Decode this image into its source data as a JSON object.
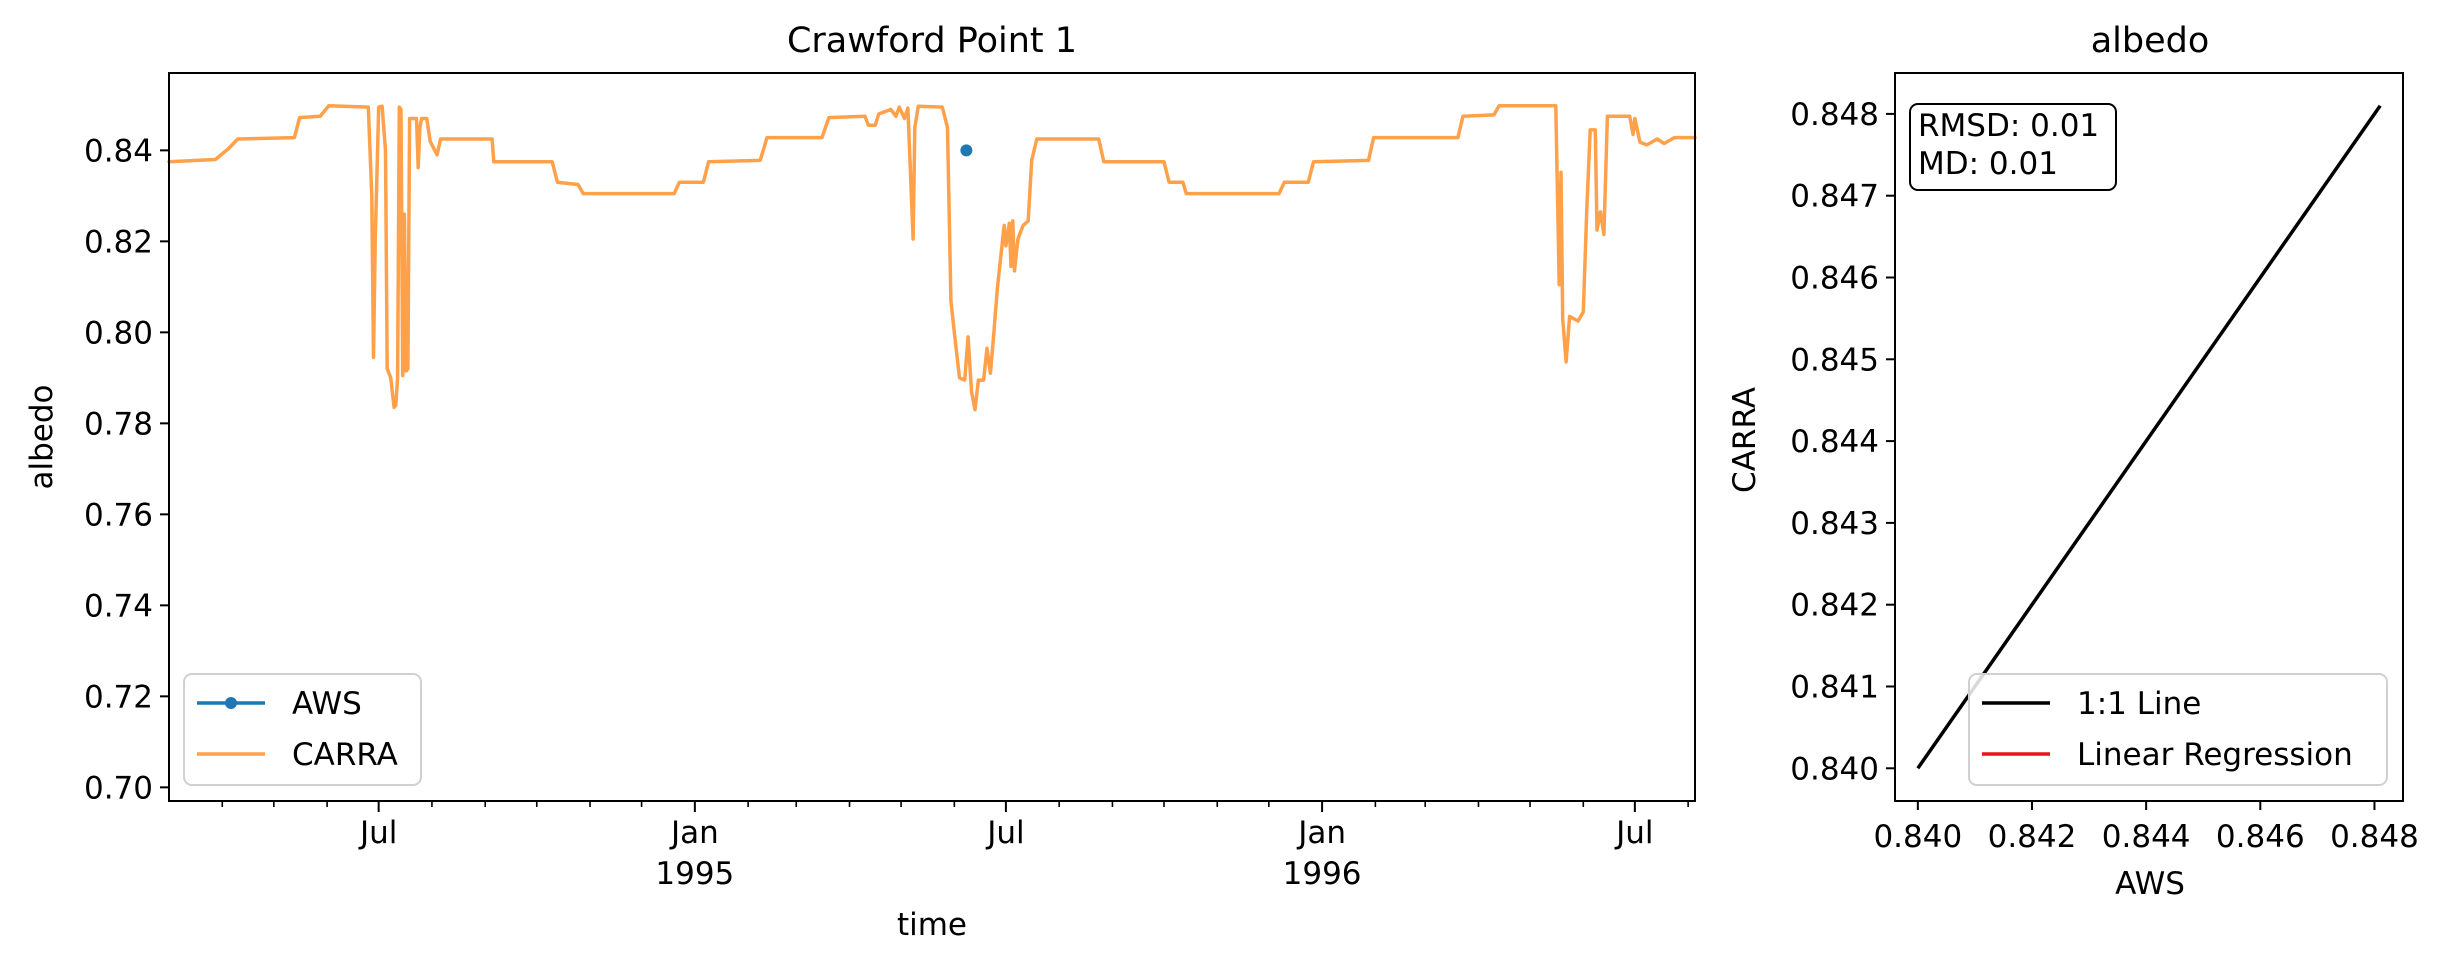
{
  "colors": {
    "aws": "#1f77b4",
    "carra": "#ffa14a",
    "one_to_one": "#000000",
    "regression": "#e8141c"
  },
  "chart_data": [
    {
      "type": "line",
      "title": "Crawford Point 1",
      "xlabel": "time",
      "ylabel": "albedo",
      "xlim": [
        "1994-03-01",
        "1996-08-05"
      ],
      "ylim": [
        0.697,
        0.857
      ],
      "yticks": [
        0.7,
        0.72,
        0.74,
        0.76,
        0.78,
        0.8,
        0.82,
        0.84
      ],
      "ytick_labels": [
        "0.70",
        "0.72",
        "0.74",
        "0.76",
        "0.78",
        "0.80",
        "0.82",
        "0.84"
      ],
      "xticks_major": [
        {
          "date": "1994-07-01",
          "label": "Jul",
          "sublabel": ""
        },
        {
          "date": "1995-01-01",
          "label": "Jan",
          "sublabel": "1995"
        },
        {
          "date": "1995-07-01",
          "label": "Jul",
          "sublabel": ""
        },
        {
          "date": "1996-01-01",
          "label": "Jan",
          "sublabel": "1996"
        },
        {
          "date": "1996-07-01",
          "label": "Jul",
          "sublabel": ""
        }
      ],
      "xticks_minor": [
        "1994-04-01",
        "1994-05-01",
        "1994-06-01",
        "1994-08-01",
        "1994-09-01",
        "1994-10-01",
        "1994-11-01",
        "1994-12-01",
        "1995-02-01",
        "1995-03-01",
        "1995-04-01",
        "1995-05-01",
        "1995-06-01",
        "1995-08-01",
        "1995-09-01",
        "1995-10-01",
        "1995-11-01",
        "1995-12-01",
        "1996-02-01",
        "1996-03-01",
        "1996-04-01",
        "1996-05-01",
        "1996-06-01",
        "1996-08-01"
      ],
      "legend": {
        "position": "lower-left",
        "entries": [
          "AWS",
          "CARRA"
        ]
      },
      "series": [
        {
          "name": "AWS",
          "marker": "dot",
          "points": [
            [
              "1995-06-08",
              0.84
            ]
          ]
        },
        {
          "name": "CARRA",
          "points": [
            [
              "1994-03-01",
              0.8375
            ],
            [
              "1994-03-28",
              0.838
            ],
            [
              "1994-04-05",
              0.8405
            ],
            [
              "1994-04-10",
              0.8425
            ],
            [
              "1994-05-13",
              0.8428
            ],
            [
              "1994-05-16",
              0.8472
            ],
            [
              "1994-05-28",
              0.8475
            ],
            [
              "1994-06-02",
              0.8498
            ],
            [
              "1994-06-25",
              0.8495
            ],
            [
              "1994-06-27",
              0.83
            ],
            [
              "1994-06-28",
              0.7945
            ],
            [
              "1994-06-29",
              0.82
            ],
            [
              "1994-07-01",
              0.8495
            ],
            [
              "1994-07-03",
              0.8497
            ],
            [
              "1994-07-05",
              0.84
            ],
            [
              "1994-07-06",
              0.792
            ],
            [
              "1994-07-08",
              0.79
            ],
            [
              "1994-07-10",
              0.7835
            ],
            [
              "1994-07-11",
              0.784
            ],
            [
              "1994-07-12",
              0.79
            ],
            [
              "1994-07-13",
              0.8495
            ],
            [
              "1994-07-14",
              0.849
            ],
            [
              "1994-07-15",
              0.7905
            ],
            [
              "1994-07-16",
              0.826
            ],
            [
              "1994-07-17",
              0.7915
            ],
            [
              "1994-07-18",
              0.792
            ],
            [
              "1994-07-19",
              0.847
            ],
            [
              "1994-07-23",
              0.847
            ],
            [
              "1994-07-24",
              0.8362
            ],
            [
              "1994-07-25",
              0.845
            ],
            [
              "1994-07-26",
              0.847
            ],
            [
              "1994-07-29",
              0.847
            ],
            [
              "1994-07-31",
              0.842
            ],
            [
              "1994-08-04",
              0.839
            ],
            [
              "1994-08-06",
              0.8425
            ],
            [
              "1994-09-05",
              0.8425
            ],
            [
              "1994-09-06",
              0.8375
            ],
            [
              "1994-10-10",
              0.8375
            ],
            [
              "1994-10-13",
              0.833
            ],
            [
              "1994-10-25",
              0.8325
            ],
            [
              "1994-10-28",
              0.8305
            ],
            [
              "1994-12-20",
              0.8305
            ],
            [
              "1994-12-23",
              0.833
            ],
            [
              "1995-01-06",
              0.833
            ],
            [
              "1995-01-09",
              0.8375
            ],
            [
              "1995-02-08",
              0.8378
            ],
            [
              "1995-02-12",
              0.8428
            ],
            [
              "1995-03-16",
              0.8428
            ],
            [
              "1995-03-20",
              0.8472
            ],
            [
              "1995-04-10",
              0.8475
            ],
            [
              "1995-04-12",
              0.8455
            ],
            [
              "1995-04-16",
              0.8455
            ],
            [
              "1995-04-18",
              0.848
            ],
            [
              "1995-04-25",
              0.849
            ],
            [
              "1995-04-28",
              0.8475
            ],
            [
              "1995-04-30",
              0.8495
            ],
            [
              "1995-05-03",
              0.847
            ],
            [
              "1995-05-05",
              0.8493
            ],
            [
              "1995-05-08",
              0.8205
            ],
            [
              "1995-05-09",
              0.845
            ],
            [
              "1995-05-11",
              0.8497
            ],
            [
              "1995-05-25",
              0.8495
            ],
            [
              "1995-05-28",
              0.845
            ],
            [
              "1995-05-30",
              0.807
            ],
            [
              "1995-06-01",
              0.8
            ],
            [
              "1995-06-04",
              0.79
            ],
            [
              "1995-06-07",
              0.7895
            ],
            [
              "1995-06-09",
              0.799
            ],
            [
              "1995-06-11",
              0.787
            ],
            [
              "1995-06-13",
              0.783
            ],
            [
              "1995-06-15",
              0.7895
            ],
            [
              "1995-06-18",
              0.7895
            ],
            [
              "1995-06-20",
              0.7965
            ],
            [
              "1995-06-22",
              0.791
            ],
            [
              "1995-06-24",
              0.8
            ],
            [
              "1995-06-26",
              0.8095
            ],
            [
              "1995-06-28",
              0.8165
            ],
            [
              "1995-06-30",
              0.8235
            ],
            [
              "1995-07-01",
              0.819
            ],
            [
              "1995-07-03",
              0.824
            ],
            [
              "1995-07-04",
              0.8145
            ],
            [
              "1995-07-05",
              0.8245
            ],
            [
              "1995-07-06",
              0.8135
            ],
            [
              "1995-07-08",
              0.8205
            ],
            [
              "1995-07-11",
              0.8235
            ],
            [
              "1995-07-14",
              0.8245
            ],
            [
              "1995-07-16",
              0.8378
            ],
            [
              "1995-07-19",
              0.8425
            ],
            [
              "1995-08-24",
              0.8425
            ],
            [
              "1995-08-27",
              0.8375
            ],
            [
              "1995-10-01",
              0.8375
            ],
            [
              "1995-10-04",
              0.833
            ],
            [
              "1995-10-12",
              0.833
            ],
            [
              "1995-10-14",
              0.8305
            ],
            [
              "1995-12-07",
              0.8305
            ],
            [
              "1995-12-10",
              0.833
            ],
            [
              "1995-12-24",
              0.833
            ],
            [
              "1995-12-27",
              0.8375
            ],
            [
              "1996-01-28",
              0.8378
            ],
            [
              "1996-01-31",
              0.8428
            ],
            [
              "1996-03-20",
              0.8428
            ],
            [
              "1996-03-23",
              0.8475
            ],
            [
              "1996-04-10",
              0.8478
            ],
            [
              "1996-04-13",
              0.8498
            ],
            [
              "1996-05-16",
              0.8498
            ],
            [
              "1996-05-18",
              0.8105
            ],
            [
              "1996-05-19",
              0.8352
            ],
            [
              "1996-05-20",
              0.803
            ],
            [
              "1996-05-22",
              0.7935
            ],
            [
              "1996-05-24",
              0.8035
            ],
            [
              "1996-05-29",
              0.8025
            ],
            [
              "1996-06-01",
              0.8045
            ],
            [
              "1996-06-03",
              0.8265
            ],
            [
              "1996-06-05",
              0.8445
            ],
            [
              "1996-06-08",
              0.8445
            ],
            [
              "1996-06-09",
              0.8225
            ],
            [
              "1996-06-11",
              0.8265
            ],
            [
              "1996-06-13",
              0.8215
            ],
            [
              "1996-06-15",
              0.8475
            ],
            [
              "1996-06-28",
              0.8475
            ],
            [
              "1996-06-30",
              0.8435
            ],
            [
              "1996-07-01",
              0.847
            ],
            [
              "1996-07-04",
              0.8418
            ],
            [
              "1996-07-08",
              0.8412
            ],
            [
              "1996-07-14",
              0.8425
            ],
            [
              "1996-07-18",
              0.8415
            ],
            [
              "1996-07-24",
              0.8428
            ],
            [
              "1996-08-05",
              0.8428
            ]
          ]
        }
      ]
    },
    {
      "type": "scatter",
      "title": "albedo",
      "xlabel": "AWS",
      "ylabel": "CARRA",
      "xlim": [
        0.8396,
        0.8485
      ],
      "ylim": [
        0.8396,
        0.8485
      ],
      "xticks": [
        0.84,
        0.842,
        0.844,
        0.846,
        0.848
      ],
      "xtick_labels": [
        "0.840",
        "0.842",
        "0.844",
        "0.846",
        "0.848"
      ],
      "yticks": [
        0.84,
        0.841,
        0.842,
        0.843,
        0.844,
        0.845,
        0.846,
        0.847,
        0.848
      ],
      "ytick_labels": [
        "0.840",
        "0.841",
        "0.842",
        "0.843",
        "0.844",
        "0.845",
        "0.846",
        "0.847",
        "0.848"
      ],
      "annotation": [
        "RMSD: 0.01",
        "MD: 0.01"
      ],
      "legend": {
        "position": "lower-right",
        "entries": [
          "1:1 Line",
          "Linear Regression"
        ]
      },
      "series": [
        {
          "name": "1:1 Line",
          "points": [
            [
              0.84,
              0.84
            ],
            [
              0.8481,
              0.8481
            ]
          ]
        },
        {
          "name": "Linear Regression",
          "points": []
        }
      ]
    }
  ]
}
